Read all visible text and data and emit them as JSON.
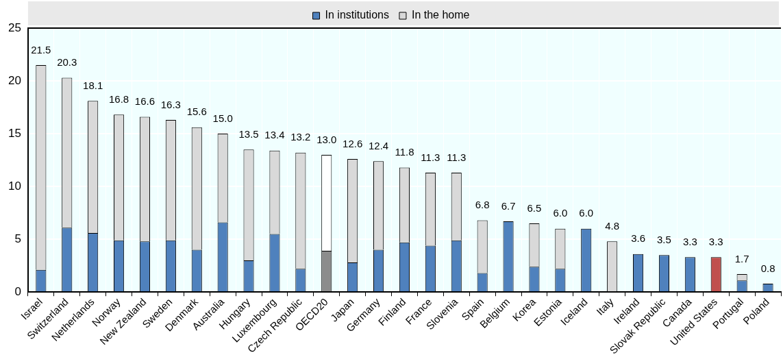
{
  "chart_data": {
    "type": "bar",
    "stacked": true,
    "categories": [
      "Israel",
      "Switzerland",
      "Netherlands",
      "Norway",
      "New Zealand",
      "Sweden",
      "Denmark",
      "Australia",
      "Hungary",
      "Luxembourg",
      "Czech Republic",
      "OECD20",
      "Japan",
      "Germany",
      "Finland",
      "France",
      "Slovenia",
      "Spain",
      "Belgium",
      "Korea",
      "Estonia",
      "Iceland",
      "Italy",
      "Ireland",
      "Slovak Republic",
      "Canada",
      "United States",
      "Portugal",
      "Poland"
    ],
    "series": [
      {
        "name": "In institutions",
        "color": "#4f81bd",
        "colors": [
          "#4f81bd",
          "#4f81bd",
          "#4f81bd",
          "#4f81bd",
          "#4f81bd",
          "#4f81bd",
          "#4f81bd",
          "#4f81bd",
          "#4f81bd",
          "#4f81bd",
          "#4f81bd",
          "#8c8c8c",
          "#4f81bd",
          "#4f81bd",
          "#4f81bd",
          "#4f81bd",
          "#4f81bd",
          "#4f81bd",
          "#4f81bd",
          "#4f81bd",
          "#4f81bd",
          "#4f81bd",
          "#4f81bd",
          "#4f81bd",
          "#4f81bd",
          "#4f81bd",
          "#c0504d",
          "#4f81bd",
          "#4f81bd"
        ],
        "values": [
          2.1,
          6.1,
          5.6,
          4.9,
          4.8,
          4.9,
          4.0,
          6.6,
          3.0,
          5.5,
          2.2,
          3.9,
          2.8,
          4.0,
          4.7,
          4.4,
          4.9,
          1.8,
          6.7,
          2.4,
          2.2,
          6.0,
          0,
          3.6,
          3.5,
          3.3,
          3.3,
          1.1,
          0.8
        ]
      },
      {
        "name": "In the home",
        "color": "#d9d9d9",
        "colors": [
          "#d9d9d9",
          "#d9d9d9",
          "#d9d9d9",
          "#d9d9d9",
          "#d9d9d9",
          "#d9d9d9",
          "#d9d9d9",
          "#d9d9d9",
          "#d9d9d9",
          "#d9d9d9",
          "#d9d9d9",
          "#ffffff",
          "#d9d9d9",
          "#d9d9d9",
          "#d9d9d9",
          "#d9d9d9",
          "#d9d9d9",
          "#d9d9d9",
          "#d9d9d9",
          "#d9d9d9",
          "#d9d9d9",
          "#d9d9d9",
          "#d9d9d9",
          "#d9d9d9",
          "#d9d9d9",
          "#d9d9d9",
          "#d9d9d9",
          "#d9d9d9",
          "#d9d9d9"
        ],
        "values": [
          19.4,
          14.2,
          12.5,
          11.9,
          11.8,
          11.4,
          11.6,
          8.4,
          10.5,
          7.9,
          11.0,
          9.1,
          9.8,
          8.4,
          7.1,
          6.9,
          6.4,
          5.0,
          0,
          4.1,
          3.8,
          0,
          4.8,
          0,
          0,
          0,
          0,
          0.6,
          0
        ]
      }
    ],
    "totals": [
      "21.5",
      "20.3",
      "18.1",
      "16.8",
      "16.6",
      "16.3",
      "15.6",
      "15.0",
      "13.5",
      "13.4",
      "13.2",
      "13.0",
      "12.6",
      "12.4",
      "11.8",
      "11.3",
      "11.3",
      "6.8",
      "6.7",
      "6.5",
      "6.0",
      "6.0",
      "4.8",
      "3.6",
      "3.5",
      "3.3",
      "3.3",
      "1.7",
      "0.8"
    ],
    "ylim": [
      0,
      25
    ],
    "yticks": [
      0,
      5,
      10,
      15,
      20,
      25
    ],
    "grid": true,
    "legend": "top"
  }
}
